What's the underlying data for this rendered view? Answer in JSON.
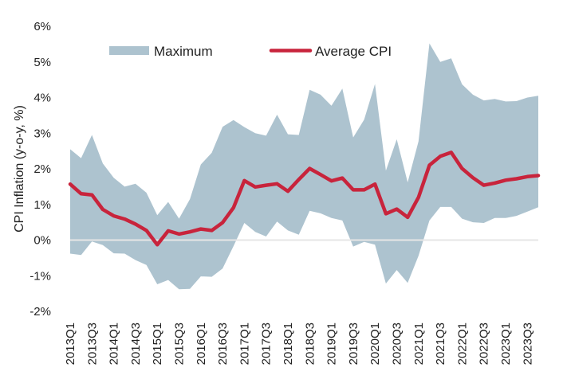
{
  "chart_data": {
    "type": "area",
    "title": "",
    "xlabel": "",
    "ylabel": "CPI Inflation (y-o-y, %)",
    "ylim": [
      -2,
      6
    ],
    "y_ticks": [
      -2,
      -1,
      0,
      1,
      2,
      3,
      4,
      5,
      6
    ],
    "y_tick_labels": [
      "-2%",
      "-1%",
      "0%",
      "1%",
      "2%",
      "3%",
      "4%",
      "5%",
      "6%"
    ],
    "x_tick_labels": [
      "2013Q1",
      "2013Q3",
      "2014Q1",
      "2014Q3",
      "2015Q1",
      "2015Q3",
      "2016Q1",
      "2016Q3",
      "2017Q1",
      "2017Q3",
      "2018Q1",
      "2018Q3",
      "2019Q1",
      "2019Q3",
      "2020Q1",
      "2020Q3",
      "2021Q1",
      "2021Q3",
      "2022Q1",
      "2022Q3",
      "2023Q1",
      "2023Q3"
    ],
    "categories": [
      "2013Q1",
      "2013Q2",
      "2013Q3",
      "2013Q4",
      "2014Q1",
      "2014Q2",
      "2014Q3",
      "2014Q4",
      "2015Q1",
      "2015Q2",
      "2015Q3",
      "2015Q4",
      "2016Q1",
      "2016Q2",
      "2016Q3",
      "2016Q4",
      "2017Q1",
      "2017Q2",
      "2017Q3",
      "2017Q4",
      "2018Q1",
      "2018Q2",
      "2018Q3",
      "2018Q4",
      "2019Q1",
      "2019Q2",
      "2019Q3",
      "2019Q4",
      "2020Q1",
      "2020Q2",
      "2020Q3",
      "2020Q4",
      "2021Q1",
      "2021Q2",
      "2021Q3",
      "2021Q4",
      "2022Q1",
      "2022Q2",
      "2022Q3",
      "2022Q4",
      "2023Q1",
      "2023Q2",
      "2023Q3",
      "2023Q4"
    ],
    "series": [
      {
        "name": "Maximum",
        "kind": "band",
        "color": "#adc3cf",
        "upper": [
          2.55,
          2.3,
          2.95,
          2.15,
          1.75,
          1.5,
          1.58,
          1.33,
          0.7,
          1.07,
          0.6,
          1.15,
          2.12,
          2.45,
          3.18,
          3.37,
          3.17,
          3.0,
          2.93,
          3.52,
          2.97,
          2.95,
          4.22,
          4.08,
          3.77,
          4.25,
          2.88,
          3.38,
          4.38,
          1.95,
          2.83,
          1.62,
          2.77,
          5.52,
          5.0,
          5.1,
          4.37,
          4.08,
          3.92,
          3.96,
          3.89,
          3.9,
          4.0,
          4.05
        ],
        "lower": [
          -0.38,
          -0.42,
          -0.04,
          -0.14,
          -0.37,
          -0.38,
          -0.56,
          -0.7,
          -1.24,
          -1.12,
          -1.38,
          -1.37,
          -1.02,
          -1.03,
          -0.8,
          -0.17,
          0.48,
          0.23,
          0.1,
          0.52,
          0.27,
          0.15,
          0.82,
          0.75,
          0.62,
          0.55,
          -0.18,
          -0.05,
          -0.13,
          -1.22,
          -0.84,
          -1.2,
          -0.44,
          0.55,
          0.93,
          0.93,
          0.6,
          0.5,
          0.48,
          0.62,
          0.62,
          0.68,
          0.8,
          0.92
        ]
      },
      {
        "name": "Average CPI",
        "kind": "line",
        "color": "#c8243c",
        "values": [
          1.57,
          1.3,
          1.27,
          0.86,
          0.68,
          0.59,
          0.45,
          0.27,
          -0.13,
          0.26,
          0.17,
          0.23,
          0.31,
          0.27,
          0.49,
          0.91,
          1.67,
          1.49,
          1.54,
          1.58,
          1.37,
          1.7,
          2.01,
          1.84,
          1.66,
          1.74,
          1.41,
          1.41,
          1.57,
          0.74,
          0.87,
          0.64,
          1.2,
          2.1,
          2.35,
          2.46,
          2.01,
          1.75,
          1.54,
          1.6,
          1.68,
          1.72,
          1.78,
          1.81
        ]
      }
    ],
    "legend": {
      "placement": "top",
      "entries": [
        {
          "label": "Maximum",
          "swatch": "band",
          "color": "#adc3cf"
        },
        {
          "label": "Average CPI",
          "swatch": "line",
          "color": "#c8243c"
        }
      ]
    },
    "zero_line": true,
    "grid": false
  }
}
